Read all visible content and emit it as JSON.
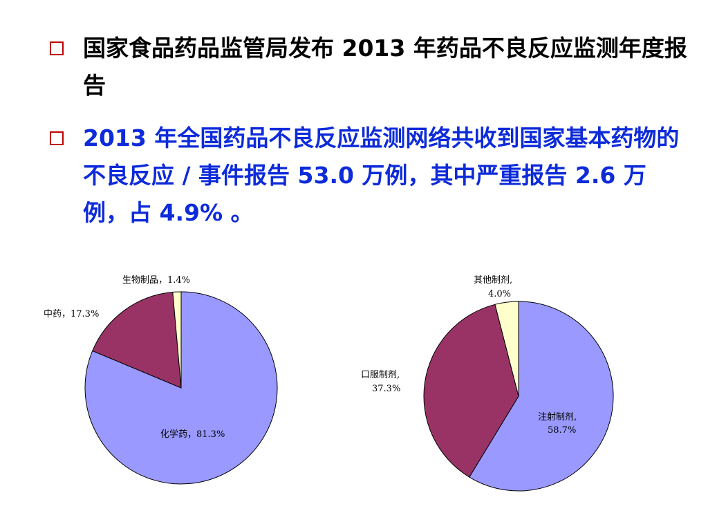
{
  "slide": {
    "bullets": [
      {
        "text": "国家食品药品监管局发布 2013 年药品不良反应监测年度报告"
      },
      {
        "text": "2013 年全国药品不良反应监测网络共收到国家基本药物的不良反应 / 事件报告 53.0 万例，其中严重报告 2.6 万例，占 4.9% 。"
      }
    ]
  },
  "colors": {
    "bullet_border": "#c00000",
    "bullet1_text": "#000000",
    "bullet2_text": "#0d2bd9"
  },
  "chart_data": [
    {
      "type": "pie",
      "slices": [
        {
          "label": "化学药，81.3%",
          "value": 81.3,
          "color": "#9999ff"
        },
        {
          "label": "中药，17.3%",
          "value": 17.3,
          "color": "#993366"
        },
        {
          "label": "生物制品，1.4%",
          "value": 1.4,
          "color": "#ffffcc"
        }
      ]
    },
    {
      "type": "pie",
      "slices": [
        {
          "label_lines": [
            "注射制剂,",
            "58.7%"
          ],
          "value": 58.7,
          "color": "#9999ff"
        },
        {
          "label_lines": [
            "口服制剂,",
            "37.3%"
          ],
          "value": 37.3,
          "color": "#993366"
        },
        {
          "label_lines": [
            "其他制剂,",
            "4.0%"
          ],
          "value": 4.0,
          "color": "#ffffcc"
        }
      ]
    }
  ]
}
